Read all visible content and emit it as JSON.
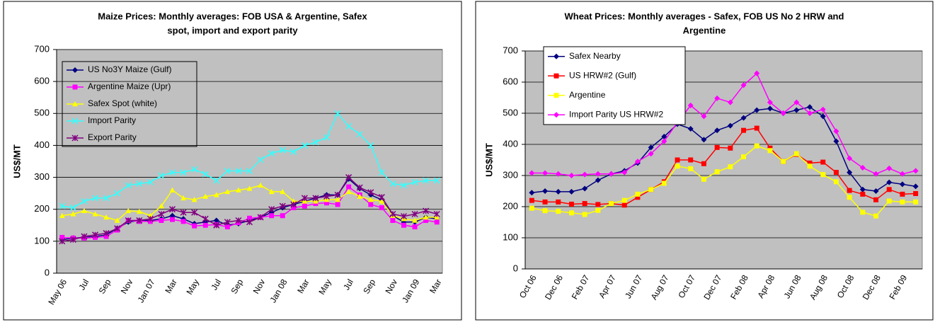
{
  "chart_data": [
    {
      "type": "line",
      "title": [
        "Maize Prices: Monthly averages: FOB USA & Argentine, Safex",
        "spot, import and export parity"
      ],
      "y_label": "US$/MT",
      "categories": [
        "May 06",
        null,
        "Jul",
        null,
        "Sep",
        null,
        "Nov",
        null,
        "Jan 07",
        null,
        "Mar",
        null,
        "May",
        null,
        "Jul",
        null,
        "Sep",
        null,
        "Nov",
        null,
        "Jan 08",
        null,
        "Mar",
        null,
        "May",
        null,
        "Jul",
        null,
        "Sep",
        null,
        "Nov",
        null,
        "Jan 09",
        null,
        "Mar"
      ],
      "ylim": [
        0,
        700
      ],
      "yticks": [
        0,
        100,
        200,
        300,
        400,
        500,
        600,
        700
      ],
      "grid": true,
      "legend": "upper left",
      "series": [
        {
          "name": "US No3Y Maize (Gulf)",
          "color": "#000080",
          "marker": "diamond",
          "values": [
            105,
            110,
            112,
            115,
            120,
            140,
            160,
            165,
            165,
            170,
            180,
            170,
            155,
            160,
            165,
            150,
            155,
            165,
            175,
            190,
            205,
            215,
            225,
            235,
            245,
            245,
            295,
            265,
            245,
            230,
            180,
            160,
            160,
            175,
            170
          ]
        },
        {
          "name": "Argentine Maize (Upr)",
          "color": "#ff00ff",
          "marker": "square",
          "values": [
            112,
            110,
            110,
            112,
            115,
            135,
            165,
            162,
            162,
            165,
            168,
            162,
            148,
            150,
            152,
            145,
            158,
            172,
            175,
            180,
            180,
            205,
            210,
            218,
            220,
            215,
            270,
            245,
            215,
            205,
            165,
            150,
            145,
            165,
            160
          ]
        },
        {
          "name": "Safex Spot (white)",
          "color": "#ffff00",
          "marker": "triangle",
          "values": [
            180,
            185,
            195,
            185,
            175,
            165,
            195,
            193,
            180,
            210,
            260,
            235,
            230,
            240,
            245,
            255,
            260,
            265,
            275,
            255,
            255,
            225,
            225,
            225,
            230,
            230,
            255,
            240,
            230,
            225,
            180,
            170,
            165,
            175,
            175
          ]
        },
        {
          "name": "Import Parity",
          "color": "#33ffff",
          "marker": "x",
          "values": [
            210,
            205,
            225,
            235,
            235,
            250,
            275,
            280,
            285,
            305,
            315,
            315,
            325,
            310,
            290,
            320,
            320,
            320,
            355,
            375,
            385,
            380,
            400,
            410,
            425,
            500,
            460,
            435,
            400,
            315,
            280,
            275,
            285,
            290,
            290
          ]
        },
        {
          "name": "Export Parity",
          "color": "#800080",
          "marker": "star",
          "values": [
            100,
            105,
            115,
            120,
            125,
            140,
            165,
            165,
            170,
            185,
            200,
            190,
            190,
            170,
            150,
            160,
            165,
            160,
            175,
            200,
            210,
            215,
            235,
            235,
            240,
            245,
            300,
            268,
            253,
            238,
            185,
            178,
            185,
            195,
            185
          ]
        }
      ]
    },
    {
      "type": "line",
      "title": [
        "Wheat Prices: Monthly averages - Safex, FOB US No 2 HRW and",
        "Argentine"
      ],
      "y_label": "US$/MT",
      "categories": [
        "Oct 06",
        null,
        "Dec 06",
        null,
        "Feb 07",
        null,
        "Apr 07",
        null,
        "Jun 07",
        null,
        "Aug 07",
        null,
        "Oct 07",
        null,
        "Dec 07",
        null,
        "Feb 08",
        null,
        "Apr 08",
        null,
        "Jun 08",
        null,
        "Aug 08",
        null,
        "Oct 08",
        null,
        "Dec 08",
        null,
        "Feb 09",
        null
      ],
      "ylim": [
        0,
        700
      ],
      "yticks": [
        0,
        100,
        200,
        300,
        400,
        500,
        600,
        700
      ],
      "grid": true,
      "legend": "upper left",
      "series": [
        {
          "name": "Safex Nearby",
          "color": "#000080",
          "marker": "diamond",
          "values": [
            245,
            250,
            248,
            248,
            258,
            285,
            305,
            315,
            340,
            390,
            425,
            465,
            450,
            415,
            445,
            460,
            485,
            510,
            515,
            500,
            510,
            520,
            490,
            410,
            310,
            255,
            250,
            278,
            272,
            265
          ]
        },
        {
          "name": "US HRW#2 (Gulf)",
          "color": "#ff0000",
          "marker": "square",
          "values": [
            220,
            215,
            215,
            208,
            210,
            207,
            210,
            205,
            230,
            255,
            280,
            350,
            350,
            338,
            390,
            388,
            445,
            452,
            388,
            345,
            368,
            340,
            343,
            310,
            252,
            240,
            222,
            255,
            240,
            242
          ]
        },
        {
          "name": "Argentine",
          "color": "#ffff00",
          "marker": "square",
          "values": [
            195,
            187,
            185,
            180,
            175,
            188,
            210,
            220,
            240,
            255,
            275,
            330,
            322,
            288,
            312,
            328,
            360,
            395,
            380,
            345,
            370,
            330,
            303,
            280,
            230,
            182,
            170,
            218,
            215,
            215
          ]
        },
        {
          "name": "Import Parity US HRW#2",
          "color": "#ff00ff",
          "marker": "diamond",
          "values": [
            308,
            308,
            305,
            300,
            303,
            305,
            305,
            310,
            345,
            370,
            410,
            470,
            525,
            490,
            548,
            535,
            590,
            628,
            535,
            500,
            535,
            500,
            512,
            442,
            355,
            325,
            305,
            323,
            305,
            315
          ]
        }
      ]
    }
  ]
}
